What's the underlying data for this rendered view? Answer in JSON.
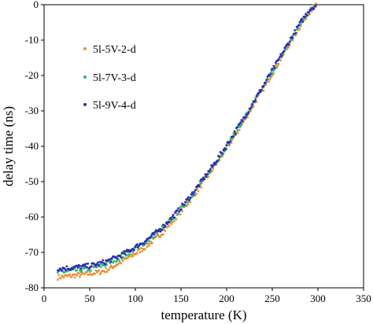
{
  "chart_data": {
    "type": "scatter",
    "xlabel": "temperature (K)",
    "ylabel": "delay time (ns)",
    "xlim": [
      0,
      350
    ],
    "ylim": [
      -80,
      0
    ],
    "x_ticks": [
      0,
      50,
      100,
      150,
      200,
      250,
      300,
      350
    ],
    "y_ticks": [
      0,
      -10,
      -20,
      -30,
      -40,
      -50,
      -60,
      -70,
      -80
    ],
    "x_tick_labels": [
      "0",
      "50",
      "100",
      "150",
      "200",
      "250",
      "300",
      "350"
    ],
    "y_tick_labels": [
      "0",
      "-10",
      "-20",
      "-30",
      "-40",
      "-50",
      "-60",
      "-70",
      "-80"
    ],
    "grid": false,
    "legend_position": "upper-left",
    "series": [
      {
        "name": "5l-5V-2-d",
        "color": "#E69138",
        "x": [
          15,
          30,
          50,
          60,
          70,
          80,
          90,
          100,
          110,
          120,
          130,
          140,
          150,
          160,
          170,
          180,
          190,
          200,
          210,
          220,
          230,
          240,
          250,
          260,
          270,
          280,
          290,
          298
        ],
        "y": [
          -77,
          -76.6,
          -76,
          -75.6,
          -74.8,
          -73.3,
          -71.8,
          -70.3,
          -68.6,
          -66.6,
          -64.3,
          -61.4,
          -58.4,
          -55.2,
          -51.8,
          -48.2,
          -44.5,
          -40.6,
          -36.6,
          -32.4,
          -28.1,
          -23.8,
          -19.4,
          -15.0,
          -10.6,
          -6.2,
          -2.2,
          0
        ]
      },
      {
        "name": "5l-7V-3-d",
        "color": "#3CB371",
        "x": [
          15,
          30,
          50,
          60,
          70,
          80,
          90,
          100,
          110,
          120,
          130,
          140,
          150,
          160,
          170,
          180,
          190,
          200,
          210,
          220,
          230,
          240,
          250,
          260,
          270,
          280,
          290,
          298
        ],
        "y": [
          -75.6,
          -75.2,
          -74.6,
          -74.0,
          -73.0,
          -71.8,
          -70.4,
          -68.9,
          -67.3,
          -65.4,
          -63.1,
          -60.5,
          -57.6,
          -54.5,
          -51.1,
          -47.6,
          -43.9,
          -40.0,
          -36.0,
          -31.8,
          -27.6,
          -23.3,
          -18.9,
          -14.5,
          -10.1,
          -5.8,
          -1.9,
          0
        ]
      },
      {
        "name": "5l-9V-4-d",
        "color": "#2B2BB3",
        "x": [
          15,
          30,
          50,
          60,
          70,
          80,
          90,
          100,
          110,
          120,
          130,
          140,
          150,
          160,
          170,
          180,
          190,
          200,
          210,
          220,
          230,
          240,
          250,
          260,
          270,
          280,
          290,
          298
        ],
        "y": [
          -74.6,
          -74.3,
          -73.8,
          -73.2,
          -72.4,
          -71.3,
          -70.0,
          -68.5,
          -66.9,
          -65.0,
          -62.8,
          -60.2,
          -57.3,
          -54.2,
          -50.8,
          -47.3,
          -43.6,
          -39.7,
          -35.7,
          -31.5,
          -27.3,
          -23.0,
          -18.6,
          -14.2,
          -9.8,
          -5.5,
          -1.6,
          0
        ]
      }
    ]
  }
}
